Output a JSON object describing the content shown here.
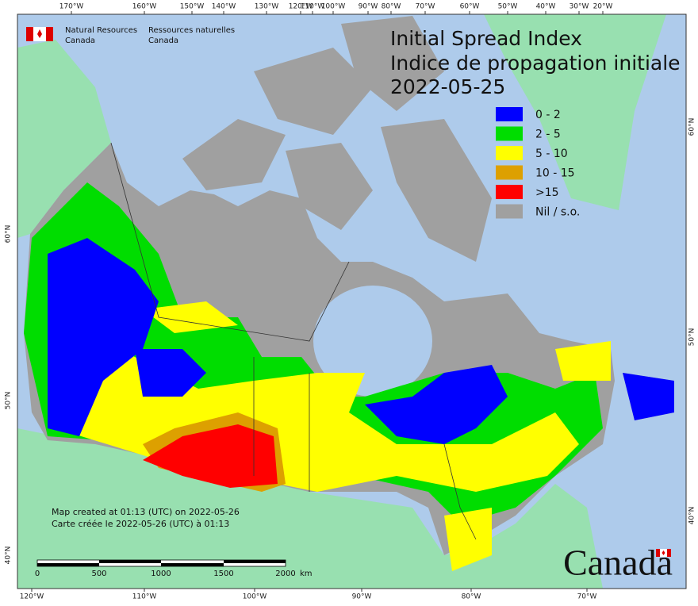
{
  "header": {
    "agency_en": "Natural Resources",
    "agency_en2": "Canada",
    "agency_fr": "Ressources naturelles",
    "agency_fr2": "Canada"
  },
  "title": {
    "line1": "Initial Spread Index",
    "line2": "Indice de propagation initiale",
    "date": "2022-05-25"
  },
  "legend": [
    {
      "label": "0 - 2",
      "color": "#0000ff"
    },
    {
      "label": "2 - 5",
      "color": "#00dd00"
    },
    {
      "label": "5 - 10",
      "color": "#ffff00"
    },
    {
      "label": "10 - 15",
      "color": "#dda000"
    },
    {
      "label": ">15",
      "color": "#ff0000"
    },
    {
      "label": "Nil / s.o.",
      "color": "#a0a0a0"
    }
  ],
  "graticule": {
    "top": [
      "170°W",
      "160°W",
      "150°W",
      "140°W",
      "130°W",
      "120°W",
      "110°W",
      "100°W",
      "90°W",
      "80°W",
      "70°W",
      "60°W",
      "50°W",
      "40°W",
      "30°W",
      "20°W"
    ],
    "bottom": [
      "120°W",
      "110°W",
      "100°W",
      "90°W",
      "80°W",
      "70°W"
    ],
    "left": [
      "60°N",
      "50°N",
      "40°N"
    ],
    "right": [
      "60°N",
      "50°N",
      "40°N"
    ]
  },
  "credits": {
    "en": "Map created at 01:13 (UTC) on 2022-05-26",
    "fr": "Carte créée le 2022-05-26 (UTC) à 01:13"
  },
  "scale_bar": {
    "ticks": [
      0,
      500,
      1000,
      1500,
      2000
    ],
    "unit": "km"
  },
  "wordmark": "Canada"
}
